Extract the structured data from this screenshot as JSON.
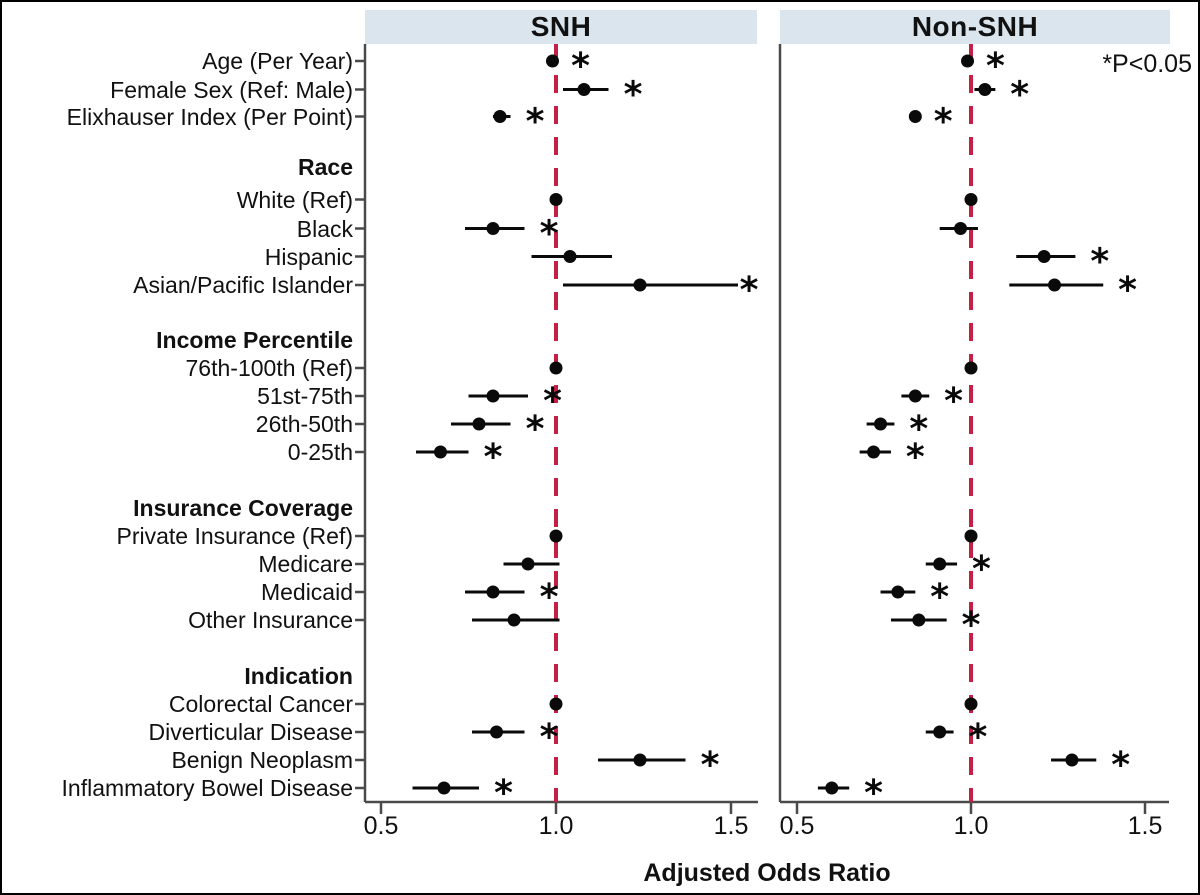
{
  "annotation": "*P<0.05",
  "xlabel": "Adjusted Odds Ratio",
  "chart_data": {
    "type": "forest",
    "panels": [
      "SNH",
      "Non-SNH"
    ],
    "x_ticks": [
      0.5,
      1.0,
      1.5
    ],
    "xlim": [
      0.45,
      1.57
    ],
    "reference_line": 1.0,
    "reference_line_color": "#C51F45",
    "header_band_color": "#DAE5ED",
    "marker_color": "#0A0A0A",
    "axis_color": "#4A4A4A",
    "rows": [
      {
        "label": "Age (Per Year)",
        "header": false,
        "snh": {
          "or": 0.99,
          "lo": 0.98,
          "hi": 1.0,
          "star": true
        },
        "non_snh": {
          "or": 0.99,
          "lo": 0.98,
          "hi": 1.0,
          "star": true
        }
      },
      {
        "label": "Female Sex (Ref: Male)",
        "header": false,
        "snh": {
          "or": 1.08,
          "lo": 1.02,
          "hi": 1.15,
          "star": true
        },
        "non_snh": {
          "or": 1.04,
          "lo": 1.01,
          "hi": 1.07,
          "star": true
        }
      },
      {
        "label": "Elixhauser Index (Per Point)",
        "header": false,
        "snh": {
          "or": 0.84,
          "lo": 0.82,
          "hi": 0.87,
          "star": true
        },
        "non_snh": {
          "or": 0.84,
          "lo": 0.83,
          "hi": 0.85,
          "star": true
        }
      },
      {
        "label": "Race",
        "header": true,
        "snh": null,
        "non_snh": null
      },
      {
        "label": "White (Ref)",
        "header": false,
        "snh": {
          "or": 1.0,
          "lo": 1.0,
          "hi": 1.0,
          "star": false
        },
        "non_snh": {
          "or": 1.0,
          "lo": 1.0,
          "hi": 1.0,
          "star": false
        }
      },
      {
        "label": "Black",
        "header": false,
        "snh": {
          "or": 0.82,
          "lo": 0.74,
          "hi": 0.91,
          "star": true
        },
        "non_snh": {
          "or": 0.97,
          "lo": 0.91,
          "hi": 1.02,
          "star": false
        }
      },
      {
        "label": "Hispanic",
        "header": false,
        "snh": {
          "or": 1.04,
          "lo": 0.93,
          "hi": 1.16,
          "star": false
        },
        "non_snh": {
          "or": 1.21,
          "lo": 1.13,
          "hi": 1.3,
          "star": true
        }
      },
      {
        "label": "Asian/Pacific Islander",
        "header": false,
        "snh": {
          "or": 1.24,
          "lo": 1.02,
          "hi": 1.52,
          "star": true
        },
        "non_snh": {
          "or": 1.24,
          "lo": 1.11,
          "hi": 1.38,
          "star": true
        }
      },
      {
        "label": "Income Percentile",
        "header": true,
        "snh": null,
        "non_snh": null
      },
      {
        "label": "76th-100th (Ref)",
        "header": false,
        "snh": {
          "or": 1.0,
          "lo": 1.0,
          "hi": 1.0,
          "star": false
        },
        "non_snh": {
          "or": 1.0,
          "lo": 1.0,
          "hi": 1.0,
          "star": false
        }
      },
      {
        "label": "51st-75th",
        "header": false,
        "snh": {
          "or": 0.82,
          "lo": 0.75,
          "hi": 0.92,
          "star": true
        },
        "non_snh": {
          "or": 0.84,
          "lo": 0.8,
          "hi": 0.88,
          "star": true
        }
      },
      {
        "label": "26th-50th",
        "header": false,
        "snh": {
          "or": 0.78,
          "lo": 0.7,
          "hi": 0.87,
          "star": true
        },
        "non_snh": {
          "or": 0.74,
          "lo": 0.7,
          "hi": 0.78,
          "star": true
        }
      },
      {
        "label": "0-25th",
        "header": false,
        "snh": {
          "or": 0.67,
          "lo": 0.6,
          "hi": 0.75,
          "star": true
        },
        "non_snh": {
          "or": 0.72,
          "lo": 0.68,
          "hi": 0.77,
          "star": true
        }
      },
      {
        "label": "Insurance Coverage",
        "header": true,
        "snh": null,
        "non_snh": null
      },
      {
        "label": "Private Insurance (Ref)",
        "header": false,
        "snh": {
          "or": 1.0,
          "lo": 1.0,
          "hi": 1.0,
          "star": false
        },
        "non_snh": {
          "or": 1.0,
          "lo": 1.0,
          "hi": 1.0,
          "star": false
        }
      },
      {
        "label": "Medicare",
        "header": false,
        "snh": {
          "or": 0.92,
          "lo": 0.85,
          "hi": 1.01,
          "star": false
        },
        "non_snh": {
          "or": 0.91,
          "lo": 0.87,
          "hi": 0.96,
          "star": true
        }
      },
      {
        "label": "Medicaid",
        "header": false,
        "snh": {
          "or": 0.82,
          "lo": 0.74,
          "hi": 0.91,
          "star": true
        },
        "non_snh": {
          "or": 0.79,
          "lo": 0.74,
          "hi": 0.84,
          "star": true
        }
      },
      {
        "label": "Other Insurance",
        "header": false,
        "snh": {
          "or": 0.88,
          "lo": 0.76,
          "hi": 1.01,
          "star": false
        },
        "non_snh": {
          "or": 0.85,
          "lo": 0.77,
          "hi": 0.93,
          "star": true
        }
      },
      {
        "label": "Indication",
        "header": true,
        "snh": null,
        "non_snh": null
      },
      {
        "label": "Colorectal Cancer",
        "header": false,
        "snh": {
          "or": 1.0,
          "lo": 1.0,
          "hi": 1.0,
          "star": false
        },
        "non_snh": {
          "or": 1.0,
          "lo": 1.0,
          "hi": 1.0,
          "star": false
        }
      },
      {
        "label": "Diverticular Disease",
        "header": false,
        "snh": {
          "or": 0.83,
          "lo": 0.76,
          "hi": 0.91,
          "star": true
        },
        "non_snh": {
          "or": 0.91,
          "lo": 0.87,
          "hi": 0.95,
          "star": true
        }
      },
      {
        "label": "Benign Neoplasm",
        "header": false,
        "snh": {
          "or": 1.24,
          "lo": 1.12,
          "hi": 1.37,
          "star": true
        },
        "non_snh": {
          "or": 1.29,
          "lo": 1.23,
          "hi": 1.36,
          "star": true
        }
      },
      {
        "label": "Inflammatory Bowel Disease",
        "header": false,
        "snh": {
          "or": 0.68,
          "lo": 0.59,
          "hi": 0.78,
          "star": true
        },
        "non_snh": {
          "or": 0.6,
          "lo": 0.56,
          "hi": 0.65,
          "star": true
        }
      }
    ]
  }
}
